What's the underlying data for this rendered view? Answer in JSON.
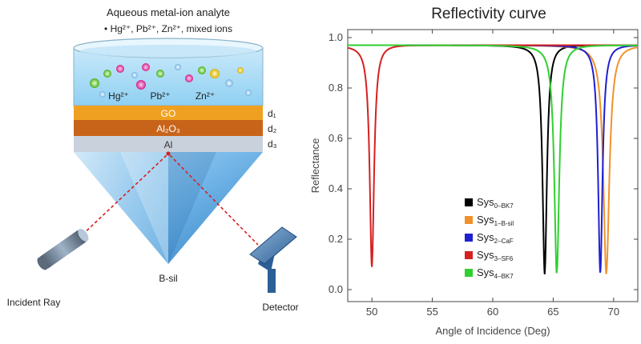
{
  "diagram": {
    "title": "Aqueous metal-ion analyte",
    "ions_line": "• Hg²⁺, Pb²⁺,  Zn²⁺, mixed ions",
    "ion_labels": [
      "Hg²⁺",
      "Pb²⁺",
      "Zn²⁺"
    ],
    "layers": [
      {
        "name": "GO",
        "thickness_label": "d₁",
        "color": "#f0a020"
      },
      {
        "name": "Al₂O₃",
        "thickness_label": "d₂",
        "color": "#c8641a"
      },
      {
        "name": "Al",
        "thickness_label": "d₃",
        "color": "#c9d2dc"
      }
    ],
    "prism_label": "B-sil",
    "source_label": "Incident Ray",
    "detector_label": "Detector"
  },
  "chart_data": {
    "type": "line",
    "title": "Reflectivity curve",
    "xlabel": "Angle of Incidence (Deg)",
    "ylabel": "Reflectance",
    "xlim": [
      48,
      72
    ],
    "ylim": [
      0,
      1
    ],
    "xticks": [
      50,
      55,
      60,
      65,
      70
    ],
    "yticks": [
      0.0,
      0.2,
      0.4,
      0.6,
      0.8,
      1.0
    ],
    "legend_position": "bottom-right",
    "series": [
      {
        "name": "Sys",
        "subscript": "0–BK7",
        "color": "#000000",
        "baseline": 0.97,
        "dip_angle": 64.3,
        "dip_min": 0.06,
        "width": 0.22
      },
      {
        "name": "Sys",
        "subscript": "1–B-sil",
        "color": "#f0922b",
        "baseline": 0.97,
        "dip_angle": 69.4,
        "dip_min": 0.06,
        "width": 0.3
      },
      {
        "name": "Sys",
        "subscript": "2–CaF",
        "color": "#2020d0",
        "baseline": 0.97,
        "dip_angle": 68.9,
        "dip_min": 0.06,
        "width": 0.22
      },
      {
        "name": "Sys",
        "subscript": "3–SF6",
        "color": "#d62020",
        "baseline": 0.97,
        "dip_angle": 50.0,
        "dip_min": 0.09,
        "width": 0.22
      },
      {
        "name": "Sys",
        "subscript": "4–BK7",
        "color": "#30d030",
        "baseline": 0.97,
        "dip_angle": 65.3,
        "dip_min": 0.06,
        "width": 0.25
      }
    ]
  }
}
